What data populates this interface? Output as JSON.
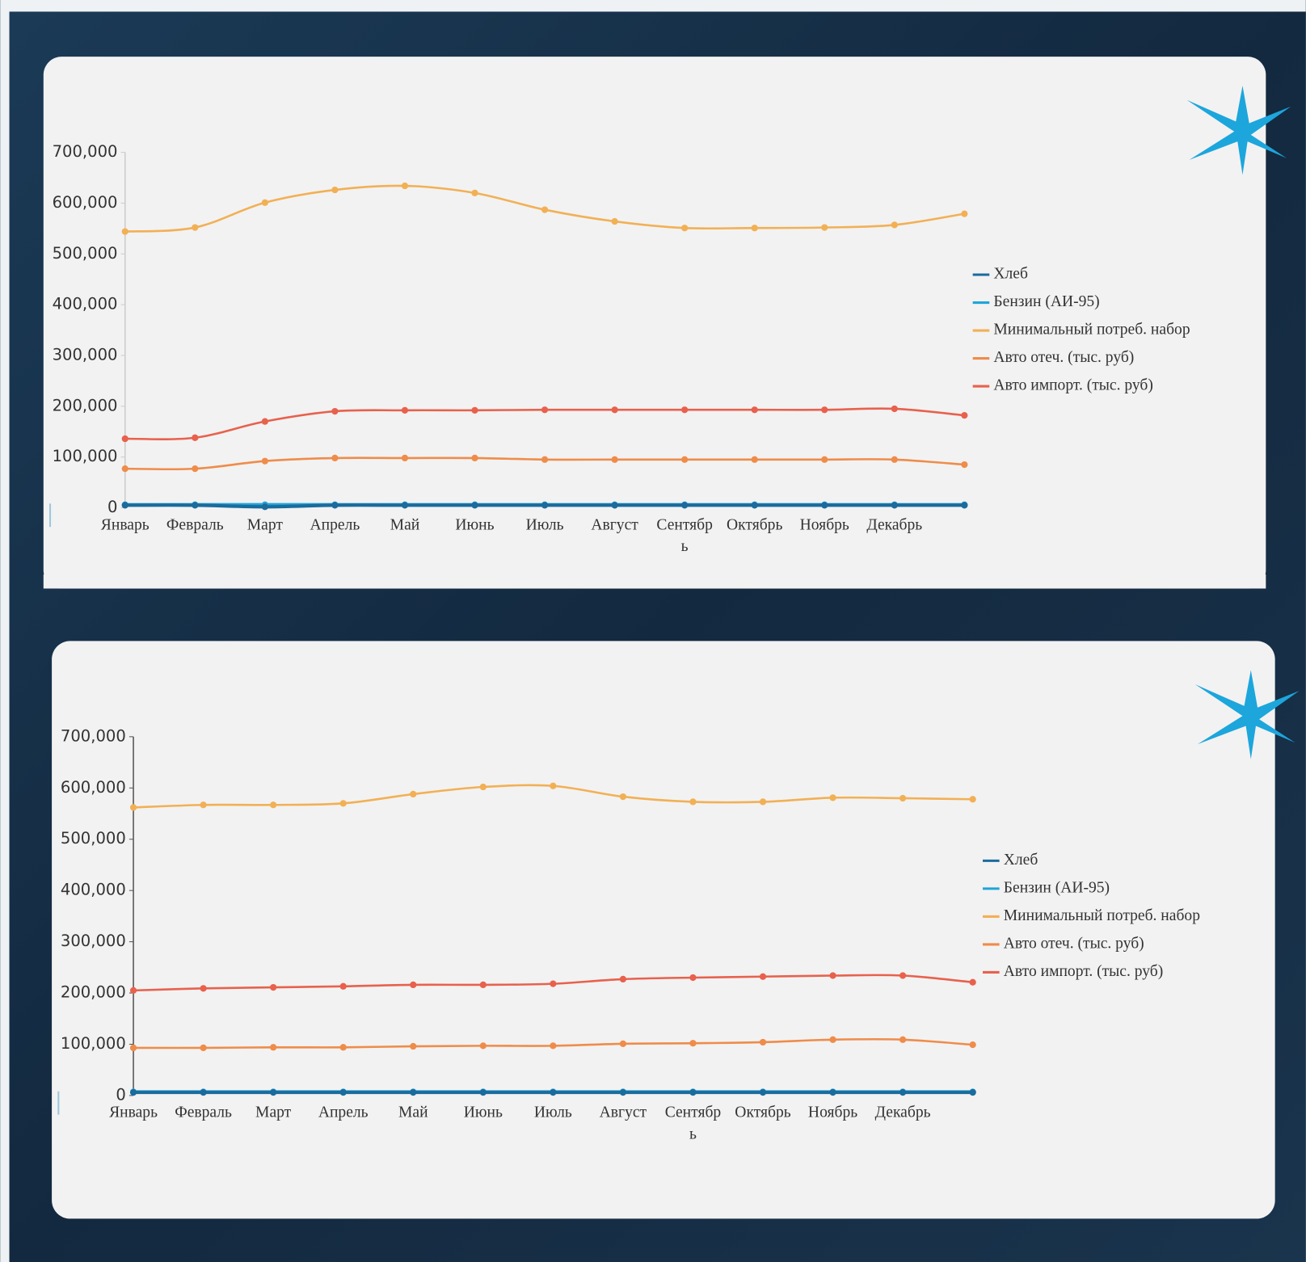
{
  "chart_data": [
    {
      "type": "line",
      "categories": [
        "Январь",
        "Февраль",
        "Март",
        "Апрель",
        "Май",
        "Июнь",
        "Июль",
        "Август",
        "Сентябрь",
        "Октябрь",
        "Ноябрь",
        "Декабрь",
        null
      ],
      "series": [
        {
          "name": "Хлеб",
          "color": "#1b6b9c",
          "values": [
            5000,
            5000,
            2000,
            5000,
            5000,
            5000,
            5000,
            5000,
            5000,
            5000,
            5000,
            5000,
            5000
          ]
        },
        {
          "name": "Бензин (АИ-95)",
          "color": "#1ea5d9",
          "values": [
            6000,
            6000,
            6000,
            6000,
            6000,
            6000,
            6000,
            6000,
            6000,
            6000,
            6000,
            6000,
            6000
          ]
        },
        {
          "name": "Минимальный потреб. набор",
          "color": "#f2b055",
          "values": [
            544000,
            552000,
            601000,
            626000,
            634000,
            620000,
            587000,
            564000,
            551000,
            551000,
            552000,
            557000,
            579000
          ]
        },
        {
          "name": "Авто отеч. (тыс. руб)",
          "color": "#ef8c4a",
          "values": [
            77000,
            77000,
            92000,
            98000,
            98000,
            98000,
            95000,
            95000,
            95000,
            95000,
            95000,
            95000,
            85000
          ]
        },
        {
          "name": "Авто импорт. (тыс. руб)",
          "color": "#e8614d",
          "values": [
            136000,
            138000,
            170000,
            190000,
            192000,
            192000,
            193000,
            193000,
            193000,
            193000,
            193000,
            195000,
            182000
          ]
        }
      ],
      "ylim": [
        0,
        700000
      ],
      "yticks": [
        0,
        {
          "value": 100000,
          "label": "100,000"
        },
        {
          "value": 200000,
          "label": "200,000"
        },
        {
          "value": 300000,
          "label": "300,000"
        },
        {
          "value": 400000,
          "label": "400,000"
        },
        {
          "value": 500000,
          "label": "500,000"
        },
        {
          "value": 600000,
          "label": "600,000"
        },
        {
          "value": 700000,
          "label": "700,000"
        }
      ],
      "legend": "right"
    },
    {
      "type": "line",
      "categories": [
        "Январь",
        "Февраль",
        "Март",
        "Апрель",
        "Май",
        "Июнь",
        "Июль",
        "Август",
        "Сентябрь",
        "Октябрь",
        "Ноябрь",
        "Декабрь",
        null
      ],
      "series": [
        {
          "name": "Хлеб",
          "color": "#1b6b9c",
          "values": [
            6000,
            6000,
            6000,
            6000,
            6000,
            6000,
            6000,
            6000,
            6000,
            6000,
            6000,
            6000,
            6000
          ]
        },
        {
          "name": "Бензин (АИ-95)",
          "color": "#1ea5d9",
          "values": [
            7000,
            7000,
            7000,
            7000,
            7000,
            7000,
            7000,
            7000,
            7000,
            7000,
            7000,
            7000,
            7000
          ]
        },
        {
          "name": "Минимальный потреб. набор",
          "color": "#f2b055",
          "values": [
            562000,
            567000,
            567000,
            570000,
            588000,
            602000,
            604000,
            583000,
            573000,
            573000,
            581000,
            580000,
            578000
          ]
        },
        {
          "name": "Авто отеч. (тыс. руб)",
          "color": "#ef8c4a",
          "values": [
            93000,
            93000,
            94000,
            94000,
            96000,
            97000,
            97000,
            101000,
            102000,
            104000,
            109000,
            109000,
            99000
          ]
        },
        {
          "name": "Авто импорт. (тыс. руб)",
          "color": "#e8614d",
          "values": [
            205000,
            209000,
            211000,
            213000,
            216000,
            216000,
            218000,
            227000,
            230000,
            232000,
            234000,
            234000,
            221000
          ]
        }
      ],
      "ylim": [
        0,
        700000
      ],
      "yticks": [
        0,
        {
          "value": 100000,
          "label": "100,000"
        },
        {
          "value": 200000,
          "label": "200,000"
        },
        {
          "value": 300000,
          "label": "300,000"
        },
        {
          "value": 400000,
          "label": "400,000"
        },
        {
          "value": 500000,
          "label": "500,000"
        },
        {
          "value": 600000,
          "label": "600,000"
        },
        {
          "value": 700000,
          "label": "700,000"
        }
      ],
      "legend": "right"
    }
  ]
}
